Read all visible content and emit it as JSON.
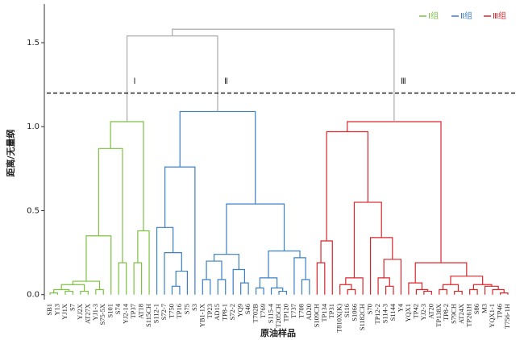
{
  "chart_data": {
    "type": "dendrogram",
    "y_label": "距离/无量纲",
    "x_label": "原油样品",
    "ylim": [
      -0.03,
      1.73
    ],
    "yticks": [
      {
        "value": 0,
        "label": "0.0"
      },
      0.5,
      {
        "value": 1,
        "label": "1.0"
      },
      1.5
    ],
    "threshold": 1.2,
    "legend": "top-right",
    "tree": {
      "height": 1.58,
      "color": "#a9a9a9",
      "children": [
        {
          "height": 1.54,
          "children": [
            {
              "name": "Ⅰ组",
              "label": "Ⅰ",
              "color": "#7cc142",
              "height": 1.03,
              "children": [
                {
                  "height": 0.87,
                  "children": [
                    {
                      "height": 0.35,
                      "children": [
                        {
                          "height": 0.08,
                          "children": [
                            {
                              "height": 0.06,
                              "children": [
                                {
                                  "height": 0.03,
                                  "children": [
                                    {
                                      "height": 0.01,
                                      "children": [
                                        "SB1",
                                        "Y13"
                                      ]
                                    },
                                    {
                                      "height": 0.02,
                                      "children": [
                                        "YJ1X",
                                        "S7"
                                      ]
                                    }
                                  ]
                                },
                                {
                                  "height": 0.02,
                                  "children": [
                                    "YJ2X",
                                    "AT27X"
                                  ]
                                }
                              ]
                            },
                            {
                              "height": 0.03,
                              "children": [
                                "YJ1-3",
                                "S75-5X"
                              ]
                            }
                          ]
                        },
                        "S101"
                      ]
                    },
                    {
                      "height": 0.19,
                      "children": [
                        "S74",
                        "YJ2-14"
                      ]
                    }
                  ]
                },
                {
                  "height": 0.38,
                  "children": [
                    {
                      "height": 0.19,
                      "children": [
                        "TP37",
                        "AT18"
                      ]
                    },
                    "S115CH"
                  ]
                }
              ]
            },
            {
              "name": "Ⅱ组",
              "label": "Ⅱ",
              "color": "#3b7fc4",
              "height": 1.09,
              "children": [
                {
                  "height": 0.76,
                  "children": [
                    {
                      "height": 0.4,
                      "children": [
                        "S112-1",
                        {
                          "height": 0.25,
                          "children": [
                            "S72-7",
                            {
                              "height": 0.14,
                              "children": [
                                {
                                  "height": 0.05,
                                  "children": [
                                    "T750",
                                    "TP16"
                                  ]
                                },
                                "S75"
                              ]
                            }
                          ]
                        }
                      ]
                    },
                    "S3"
                  ]
                },
                {
                  "height": 0.54,
                  "children": [
                    {
                      "height": 0.24,
                      "children": [
                        {
                          "height": 0.2,
                          "children": [
                            {
                              "height": 0.09,
                              "children": [
                                "YB1-1X",
                                "TP23"
                              ]
                            },
                            {
                              "height": 0.09,
                              "children": [
                                "AD15",
                                "TP8-1"
                              ]
                            }
                          ]
                        },
                        {
                          "height": 0.15,
                          "children": [
                            "S72-2",
                            {
                              "height": 0.07,
                              "children": [
                                "YQ9",
                                "S46"
                              ]
                            }
                          ]
                        }
                      ]
                    },
                    {
                      "height": 0.26,
                      "children": [
                        {
                          "height": 0.1,
                          "children": [
                            {
                              "height": 0.04,
                              "children": [
                                "T702B",
                                "T769"
                              ]
                            },
                            {
                              "height": 0.04,
                              "children": [
                                "S115-4",
                                {
                                  "height": 0.02,
                                  "children": [
                                    "T205CH",
                                    "TP120"
                                  ]
                                }
                              ]
                            }
                          ]
                        },
                        {
                          "height": 0.22,
                          "children": [
                            "T737",
                            {
                              "height": 0.09,
                              "children": [
                                "T708",
                                "AD20"
                              ]
                            }
                          ]
                        }
                      ]
                    }
                  ]
                }
              ]
            }
          ]
        },
        {
          "name": "Ⅲ组",
          "label": "Ⅲ",
          "color": "#d9262b",
          "height": 1.03,
          "children": [
            {
              "height": 0.97,
              "children": [
                {
                  "height": 0.32,
                  "children": [
                    {
                      "height": 0.19,
                      "children": [
                        "S109CH",
                        "TP134"
                      ]
                    },
                    "TP31"
                  ]
                },
                {
                  "height": 0.55,
                  "children": [
                    {
                      "height": 0.1,
                      "children": [
                        {
                          "height": 0.06,
                          "children": [
                            "T810X(K)",
                            {
                              "height": 0.03,
                              "children": [
                                "S116",
                                "S1066"
                              ]
                            }
                          ]
                        },
                        "S1182CH"
                      ]
                    },
                    {
                      "height": 0.34,
                      "children": [
                        "S70",
                        {
                          "height": 0.21,
                          "children": [
                            {
                              "height": 0.1,
                              "children": [
                                "TP12-2",
                                {
                                  "height": 0.05,
                                  "children": [
                                    "S114-3",
                                    "S1144"
                                  ]
                                }
                              ]
                            },
                            "Y4"
                          ]
                        }
                      ]
                    }
                  ]
                }
              ]
            },
            {
              "height": 0.19,
              "children": [
                {
                  "height": 0.07,
                  "children": [
                    "YQX1",
                    {
                      "height": 0.03,
                      "children": [
                        "TP42",
                        {
                          "height": 0.02,
                          "children": [
                            "YJ2-3",
                            "AT20"
                          ]
                        }
                      ]
                    }
                  ]
                },
                {
                  "height": 0.11,
                  "children": [
                    {
                      "height": 0.06,
                      "children": [
                        {
                          "height": 0.03,
                          "children": [
                            "TP138X",
                            "TP8-2"
                          ]
                        },
                        {
                          "height": 0.02,
                          "children": [
                            "S79CH",
                            "AT24X"
                          ]
                        }
                      ]
                    },
                    {
                      "height": 0.06,
                      "children": [
                        {
                          "height": 0.03,
                          "children": [
                            "TP261H",
                            "S86"
                          ]
                        },
                        {
                          "height": 0.05,
                          "children": [
                            "M3",
                            {
                              "height": 0.03,
                              "children": [
                                "YQX1-1",
                                {
                                  "height": 0.01,
                                  "children": [
                                    "TP46",
                                    "T756-1H"
                                  ]
                                }
                              ]
                            }
                          ]
                        }
                      ]
                    }
                  ]
                }
              ]
            }
          ]
        }
      ]
    }
  }
}
